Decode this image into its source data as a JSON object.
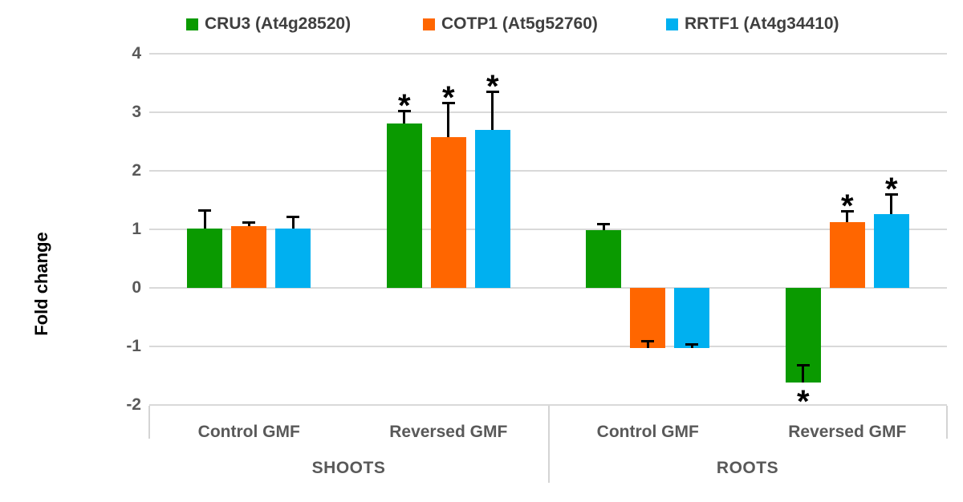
{
  "chart_data": {
    "type": "bar",
    "title": "",
    "ylabel": "Fold change",
    "ylim": [
      -2,
      4
    ],
    "yticks": [
      4,
      3,
      2,
      1,
      0,
      -1,
      -2
    ],
    "grid": true,
    "legend_position": "top",
    "significance_marker": "*",
    "categories": [
      "Control GMF",
      "Reversed GMF",
      "Control GMF",
      "Reversed GMF"
    ],
    "panels": [
      {
        "label": "SHOOTS",
        "categories": [
          "Control GMF",
          "Reversed GMF"
        ]
      },
      {
        "label": "ROOTS",
        "categories": [
          "Control GMF",
          "Reversed GMF"
        ]
      }
    ],
    "series": [
      {
        "name": "CRU3 (At4g28520)",
        "color": "#0A9A00",
        "values": [
          1.02,
          2.81,
          0.99,
          -1.62
        ],
        "errors": [
          0.31,
          0.22,
          0.11,
          0.3
        ],
        "significant": [
          false,
          true,
          false,
          true
        ]
      },
      {
        "name": "COTP1 (At5g52760)",
        "color": "#FF6600",
        "values": [
          1.05,
          2.57,
          -1.03,
          1.12
        ],
        "errors": [
          0.08,
          0.59,
          0.12,
          0.19
        ],
        "significant": [
          false,
          true,
          false,
          true
        ]
      },
      {
        "name": "RRTF1 (At4g34410)",
        "color": "#00B0F0",
        "values": [
          1.02,
          2.7,
          -1.03,
          1.26
        ],
        "errors": [
          0.2,
          0.66,
          0.07,
          0.34
        ],
        "significant": [
          false,
          true,
          false,
          true
        ]
      }
    ],
    "colors": {
      "gridline": "#D9D9D9",
      "axis_text": "#595959",
      "legend_text": "#3F3F3F",
      "error_bar": "#000000"
    }
  }
}
